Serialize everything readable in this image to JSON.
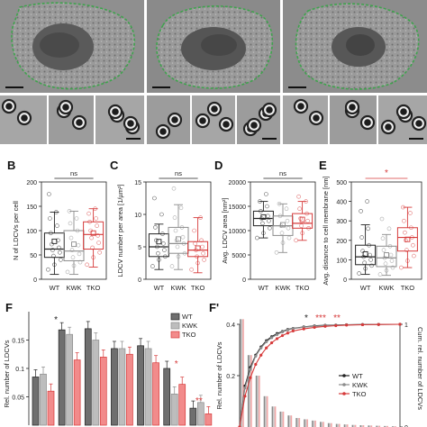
{
  "figure": {
    "panel_letters": [
      "B",
      "C",
      "D",
      "E",
      "F",
      "F'"
    ]
  },
  "colors": {
    "wt": "#222222",
    "kwk": "#8c8c8c",
    "tko": "#d63a3a",
    "membrane_outline": "#3fa34d",
    "em_dark": "#3b3b3b",
    "em_mid": "#7d7d7d",
    "em_light": "#bdbdbd"
  },
  "chart_data": [
    {
      "panel": "B",
      "type": "box",
      "categories": [
        "WT",
        "KWK",
        "TKO"
      ],
      "ylabel": "N of LDCVs per cell",
      "ylim": [
        0,
        200
      ],
      "yticks": [
        0,
        50,
        100,
        150,
        200
      ],
      "significance": [
        {
          "between": [
            "WT",
            "TKO"
          ],
          "label": "ns"
        }
      ],
      "boxes": [
        {
          "name": "WT",
          "whisker_low": 10,
          "q1": 45,
          "median": 62,
          "q3": 95,
          "whisker_high": 138,
          "mean": 78,
          "points": [
            20,
            30,
            40,
            48,
            55,
            60,
            65,
            72,
            80,
            95,
            110,
            125,
            138,
            175
          ]
        },
        {
          "name": "KWK",
          "whisker_low": 10,
          "q1": 38,
          "median": 58,
          "q3": 100,
          "whisker_high": 140,
          "mean": 72,
          "points": [
            15,
            28,
            35,
            45,
            52,
            60,
            70,
            85,
            100,
            115,
            125,
            140
          ]
        },
        {
          "name": "TKO",
          "whisker_low": 25,
          "q1": 62,
          "median": 92,
          "q3": 118,
          "whisker_high": 145,
          "mean": 95,
          "points": [
            30,
            45,
            55,
            65,
            75,
            85,
            90,
            100,
            110,
            118,
            125,
            135,
            145
          ]
        }
      ]
    },
    {
      "panel": "C",
      "type": "box",
      "categories": [
        "WT",
        "KWK",
        "TKO"
      ],
      "ylabel": "LDCV number per area [1/µm²]",
      "ylim": [
        0,
        15
      ],
      "yticks": [
        0,
        5,
        10,
        15
      ],
      "significance": [
        {
          "between": [
            "WT",
            "TKO"
          ],
          "label": "ns"
        }
      ],
      "boxes": [
        {
          "name": "WT",
          "whisker_low": 1.5,
          "q1": 3.5,
          "median": 5.0,
          "q3": 7.0,
          "whisker_high": 8.5,
          "mean": 5.8,
          "points": [
            2,
            3,
            3.5,
            4,
            4.5,
            5,
            5.5,
            6,
            7,
            8,
            10,
            12.5
          ]
        },
        {
          "name": "KWK",
          "whisker_low": 1.5,
          "q1": 4.0,
          "median": 5.5,
          "q3": 8.0,
          "whisker_high": 11.5,
          "mean": 6.2,
          "points": [
            2,
            3.5,
            4,
            5,
            5.5,
            6,
            6.5,
            7.5,
            8,
            9.5,
            11,
            14
          ]
        },
        {
          "name": "TKO",
          "whisker_low": 1.0,
          "q1": 3.5,
          "median": 4.5,
          "q3": 5.8,
          "whisker_high": 9.5,
          "mean": 4.8,
          "points": [
            1.5,
            2.5,
            3,
            3.5,
            4,
            4.5,
            5,
            5.5,
            6,
            7.5,
            9.5
          ]
        }
      ]
    },
    {
      "panel": "D",
      "type": "box",
      "categories": [
        "WT",
        "KWK",
        "TKO"
      ],
      "ylabel": "Avg. LDCV area [nm²]",
      "ylim": [
        0,
        20000
      ],
      "yticks": [
        0,
        5000,
        10000,
        15000,
        20000
      ],
      "significance": [
        {
          "between": [
            "WT",
            "TKO"
          ],
          "label": "ns"
        }
      ],
      "boxes": [
        {
          "name": "WT",
          "whisker_low": 8500,
          "q1": 11000,
          "median": 12500,
          "q3": 14000,
          "whisker_high": 16000,
          "mean": 12800,
          "points": [
            8500,
            9500,
            10500,
            11500,
            12000,
            12500,
            13000,
            14000,
            15000,
            16000,
            17500
          ]
        },
        {
          "name": "KWK",
          "whisker_low": 5500,
          "q1": 9000,
          "median": 11000,
          "q3": 13000,
          "whisker_high": 15500,
          "mean": 11200,
          "points": [
            5500,
            7500,
            8500,
            9500,
            10500,
            11000,
            12000,
            13000,
            14500,
            15500
          ]
        },
        {
          "name": "TKO",
          "whisker_low": 8000,
          "q1": 10500,
          "median": 11500,
          "q3": 13500,
          "whisker_high": 16000,
          "mean": 12300,
          "points": [
            8000,
            9500,
            10500,
            11000,
            12000,
            12500,
            13500,
            14500,
            16000,
            17000
          ]
        }
      ]
    },
    {
      "panel": "E",
      "type": "box",
      "categories": [
        "WT",
        "KWK",
        "TKO"
      ],
      "ylabel": "Avg. distance to cell membrane [nm]",
      "ylim": [
        0,
        500
      ],
      "yticks": [
        0,
        100,
        200,
        300,
        400,
        500
      ],
      "significance": [
        {
          "between": [
            "WT",
            "TKO"
          ],
          "label": "*"
        }
      ],
      "boxes": [
        {
          "name": "WT",
          "whisker_low": 25,
          "q1": 75,
          "median": 115,
          "q3": 175,
          "whisker_high": 280,
          "mean": 130,
          "points": [
            30,
            55,
            70,
            85,
            100,
            115,
            125,
            145,
            175,
            215,
            260,
            350,
            400
          ]
        },
        {
          "name": "KWK",
          "whisker_low": 20,
          "q1": 65,
          "median": 110,
          "q3": 170,
          "whisker_high": 230,
          "mean": 125,
          "points": [
            25,
            45,
            60,
            80,
            95,
            110,
            125,
            150,
            170,
            210,
            260,
            310
          ]
        },
        {
          "name": "TKO",
          "whisker_low": 60,
          "q1": 145,
          "median": 215,
          "q3": 265,
          "whisker_high": 370,
          "mean": 205,
          "points": [
            60,
            95,
            120,
            150,
            175,
            200,
            215,
            240,
            265,
            300,
            340,
            370
          ]
        }
      ]
    },
    {
      "panel": "F",
      "type": "bar",
      "ylabel": "Rel. number of LDCVs",
      "ylim": [
        0,
        0.2
      ],
      "yticks": [
        0.05,
        0.1,
        0.15
      ],
      "legend": [
        "WT",
        "KWK",
        "TKO"
      ],
      "annotations": [
        "*",
        "*",
        "**"
      ],
      "series": [
        {
          "name": "WT",
          "values": [
            0.085,
            0.168,
            0.17,
            0.135,
            0.14,
            0.1,
            0.03
          ]
        },
        {
          "name": "KWK",
          "values": [
            0.09,
            0.16,
            0.15,
            0.135,
            0.135,
            0.055,
            0.04
          ]
        },
        {
          "name": "TKO",
          "values": [
            0.06,
            0.115,
            0.12,
            0.125,
            0.11,
            0.072,
            0.02
          ]
        }
      ]
    },
    {
      "panel": "F'",
      "type": "line",
      "ylabel": "Rel. number of LDCVs",
      "y2label": "Cum. rel. number of LDCVs",
      "ylim": [
        0,
        0.4
      ],
      "yticks": [
        0.2,
        0.4
      ],
      "y2lim": [
        0,
        1
      ],
      "y2ticks": [
        0,
        1
      ],
      "legend": [
        "WT",
        "KWK",
        "TKO"
      ],
      "annotations": [
        "*",
        "***",
        "**"
      ],
      "histogram": [
        0.42,
        0.28,
        0.2,
        0.12,
        0.08,
        0.06,
        0.045,
        0.035,
        0.03,
        0.025,
        0.02,
        0.015,
        0.012,
        0.01,
        0.008,
        0.007,
        0.006,
        0.005,
        0.004,
        0.003
      ],
      "series": [
        {
          "name": "WT",
          "x": [
            0,
            1,
            2,
            3,
            4,
            5,
            6,
            7,
            8,
            9,
            10,
            12,
            14,
            16,
            18,
            20,
            23,
            26,
            30
          ],
          "y": [
            0,
            0.4,
            0.58,
            0.7,
            0.78,
            0.84,
            0.88,
            0.91,
            0.93,
            0.95,
            0.96,
            0.975,
            0.985,
            0.99,
            0.993,
            0.996,
            0.998,
            0.999,
            1.0
          ]
        },
        {
          "name": "KWK",
          "x": [
            0,
            1,
            2,
            3,
            4,
            5,
            6,
            7,
            8,
            9,
            10,
            12,
            14,
            16,
            18,
            20,
            23,
            26,
            30
          ],
          "y": [
            0,
            0.38,
            0.56,
            0.69,
            0.77,
            0.83,
            0.87,
            0.9,
            0.925,
            0.945,
            0.958,
            0.972,
            0.982,
            0.988,
            0.992,
            0.995,
            0.997,
            0.999,
            1.0
          ]
        },
        {
          "name": "TKO",
          "x": [
            0,
            1,
            2,
            3,
            4,
            5,
            6,
            7,
            8,
            9,
            10,
            12,
            14,
            16,
            18,
            20,
            23,
            26,
            30
          ],
          "y": [
            0,
            0.3,
            0.48,
            0.61,
            0.7,
            0.77,
            0.82,
            0.86,
            0.89,
            0.915,
            0.935,
            0.955,
            0.97,
            0.98,
            0.987,
            0.992,
            0.996,
            0.998,
            1.0
          ]
        }
      ]
    }
  ]
}
